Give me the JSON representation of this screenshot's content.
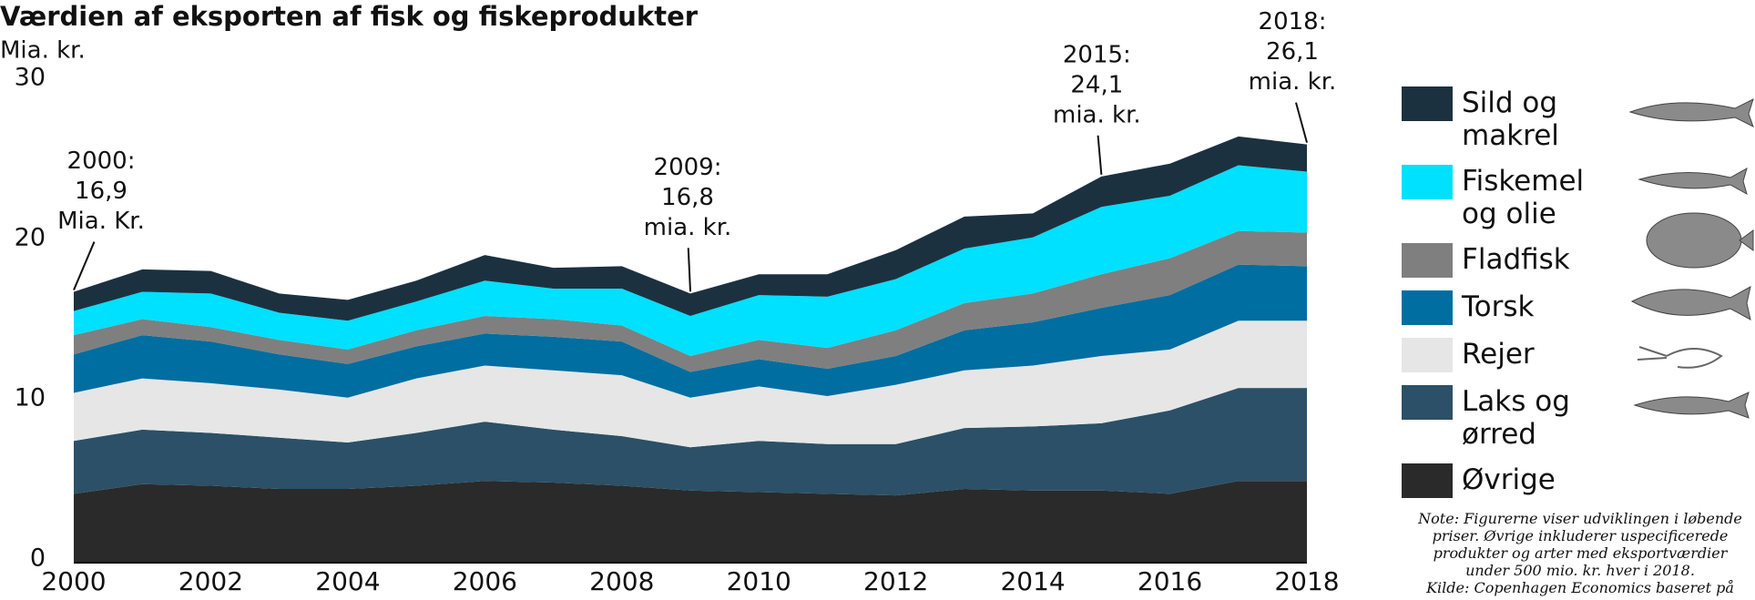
{
  "chart_data": {
    "type": "stacked_area",
    "title": "Værdien af eksporten af fisk og fiskeprodukter",
    "y_label": "Mia. kr.",
    "x": [
      2000,
      2001,
      2002,
      2003,
      2004,
      2005,
      2006,
      2007,
      2008,
      2009,
      2010,
      2011,
      2012,
      2013,
      2014,
      2015,
      2016,
      2017,
      2018
    ],
    "xlim": [
      2000,
      2018
    ],
    "xticks": [
      2000,
      2002,
      2004,
      2006,
      2008,
      2010,
      2012,
      2014,
      2016,
      2018
    ],
    "ylim": [
      0,
      30
    ],
    "yticks": [
      0,
      10,
      20,
      30
    ],
    "series": [
      {
        "name": "Øvrige",
        "color": "#2a2a2a",
        "values": [
          4.3,
          4.9,
          4.8,
          4.6,
          4.6,
          4.8,
          5.1,
          5.0,
          4.8,
          4.5,
          4.4,
          4.3,
          4.2,
          4.6,
          4.5,
          4.5,
          4.3,
          5.1,
          5.1
        ]
      },
      {
        "name": "Laks og ørred",
        "color": "#2b5068",
        "values": [
          3.3,
          3.4,
          3.3,
          3.2,
          2.9,
          3.3,
          3.7,
          3.3,
          3.1,
          2.7,
          3.2,
          3.1,
          3.2,
          3.8,
          4.0,
          4.2,
          5.2,
          5.8,
          5.8
        ]
      },
      {
        "name": "Rejer",
        "color": "#e6e6e6",
        "values": [
          3.0,
          3.2,
          3.1,
          3.0,
          2.8,
          3.4,
          3.5,
          3.7,
          3.8,
          3.1,
          3.4,
          3.0,
          3.7,
          3.6,
          3.8,
          4.2,
          3.8,
          4.2,
          4.2
        ]
      },
      {
        "name": "Torsk",
        "color": "#006ea0",
        "values": [
          2.4,
          2.7,
          2.6,
          2.2,
          2.1,
          2.0,
          2.0,
          2.1,
          2.1,
          1.6,
          1.7,
          1.7,
          1.8,
          2.5,
          2.7,
          3.0,
          3.4,
          3.5,
          3.4
        ]
      },
      {
        "name": "Fladfisk",
        "color": "#7f7f7f",
        "values": [
          1.2,
          1.0,
          0.9,
          0.9,
          0.9,
          1.0,
          1.1,
          1.1,
          1.0,
          1.0,
          1.2,
          1.3,
          1.6,
          1.7,
          1.8,
          2.1,
          2.3,
          2.1,
          2.1
        ]
      },
      {
        "name": "Fiskemel og olie",
        "color": "#00e0ff",
        "values": [
          1.5,
          1.7,
          2.1,
          1.7,
          1.8,
          1.8,
          2.2,
          1.9,
          2.3,
          2.5,
          2.8,
          3.2,
          3.2,
          3.4,
          3.5,
          4.2,
          3.9,
          4.1,
          3.8
        ]
      },
      {
        "name": "Sild og makrel",
        "color": "#1c3140",
        "values": [
          1.2,
          1.4,
          1.4,
          1.2,
          1.3,
          1.3,
          1.6,
          1.3,
          1.4,
          1.4,
          1.3,
          1.4,
          1.8,
          2.0,
          1.5,
          1.9,
          2.0,
          1.8,
          1.7
        ]
      }
    ],
    "annotations": [
      {
        "x": 2000,
        "y": 16.9,
        "lines": [
          "2000:",
          "16,9",
          "Mia. Kr."
        ]
      },
      {
        "x": 2009,
        "y": 16.8,
        "lines": [
          "2009:",
          "16,8",
          "mia. kr."
        ]
      },
      {
        "x": 2015,
        "y": 24.1,
        "lines": [
          "2015:",
          "24,1",
          "mia. kr."
        ]
      },
      {
        "x": 2018,
        "y": 26.1,
        "lines": [
          "2018:",
          "26,1",
          "mia. kr."
        ]
      }
    ],
    "note": [
      "Note: Figurerne viser udviklingen i løbende",
      "priser. Øvrige inkluderer uspecificerede",
      "produkter og arter med eksportværdier",
      "under 500 mio. kr. hver i 2018.",
      "Kilde: Copenhagen Economics baseret på"
    ]
  }
}
